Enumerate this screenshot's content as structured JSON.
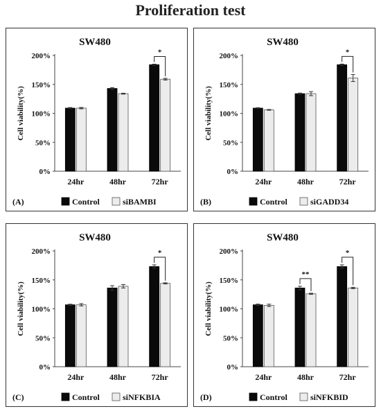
{
  "page": {
    "title": "Proliferation test"
  },
  "colors": {
    "control": "#0a0a0a",
    "treatment": "#ececec",
    "edge": "#555555"
  },
  "chart_data": [
    {
      "type": "bar",
      "panel_label": "(A)",
      "title": "SW480",
      "ylabel": "Cell viability(%)",
      "xlabel": "",
      "ylim": [
        0,
        200
      ],
      "yticks": [
        "0%",
        "50%",
        "100%",
        "150%",
        "200%"
      ],
      "categories": [
        "24hr",
        "48hr",
        "72hr"
      ],
      "series": [
        {
          "name": "Control",
          "values": [
            109,
            143,
            184
          ],
          "errors": [
            1,
            1.5,
            1
          ]
        },
        {
          "name": "siBAMBI",
          "values": [
            109,
            134,
            159
          ],
          "errors": [
            1.2,
            0.8,
            1.5
          ]
        }
      ],
      "annotations": [
        {
          "category": "72hr",
          "text": "*"
        }
      ]
    },
    {
      "type": "bar",
      "panel_label": "(B)",
      "title": "SW480",
      "ylabel": "Cell viability(%)",
      "xlabel": "",
      "ylim": [
        0,
        200
      ],
      "yticks": [
        "0%",
        "50%",
        "100%",
        "150%",
        "200%"
      ],
      "categories": [
        "24hr",
        "48hr",
        "72hr"
      ],
      "series": [
        {
          "name": "Control",
          "values": [
            109,
            134,
            184
          ],
          "errors": [
            0.8,
            1,
            1.2
          ]
        },
        {
          "name": "siGADD34",
          "values": [
            106,
            134,
            161
          ],
          "errors": [
            0.7,
            3.5,
            6
          ]
        }
      ],
      "annotations": [
        {
          "category": "72hr",
          "text": "*"
        }
      ]
    },
    {
      "type": "bar",
      "panel_label": "(C)",
      "title": "SW480",
      "ylabel": "Cell viability(%)",
      "xlabel": "",
      "ylim": [
        0,
        200
      ],
      "yticks": [
        "0%",
        "50%",
        "100%",
        "150%",
        "200%"
      ],
      "categories": [
        "24hr",
        "48hr",
        "72hr"
      ],
      "series": [
        {
          "name": "Control",
          "values": [
            107,
            136,
            173
          ],
          "errors": [
            1,
            4,
            3
          ]
        },
        {
          "name": "siNFKBIA",
          "values": [
            107,
            139,
            144
          ],
          "errors": [
            2,
            3,
            1
          ]
        }
      ],
      "annotations": [
        {
          "category": "72hr",
          "text": "*"
        }
      ]
    },
    {
      "type": "bar",
      "panel_label": "(D)",
      "title": "SW480",
      "ylabel": "Cell viability(%)",
      "xlabel": "",
      "ylim": [
        0,
        200
      ],
      "yticks": [
        "0%",
        "50%",
        "100%",
        "150%",
        "200%"
      ],
      "categories": [
        "24hr",
        "48hr",
        "72hr"
      ],
      "series": [
        {
          "name": "Control",
          "values": [
            107,
            136,
            173
          ],
          "errors": [
            1.2,
            3,
            3
          ]
        },
        {
          "name": "siNFKBID",
          "values": [
            106,
            126,
            136
          ],
          "errors": [
            2,
            1,
            1.2
          ]
        }
      ],
      "annotations": [
        {
          "category": "48hr",
          "text": "**"
        },
        {
          "category": "72hr",
          "text": "*"
        }
      ]
    }
  ]
}
